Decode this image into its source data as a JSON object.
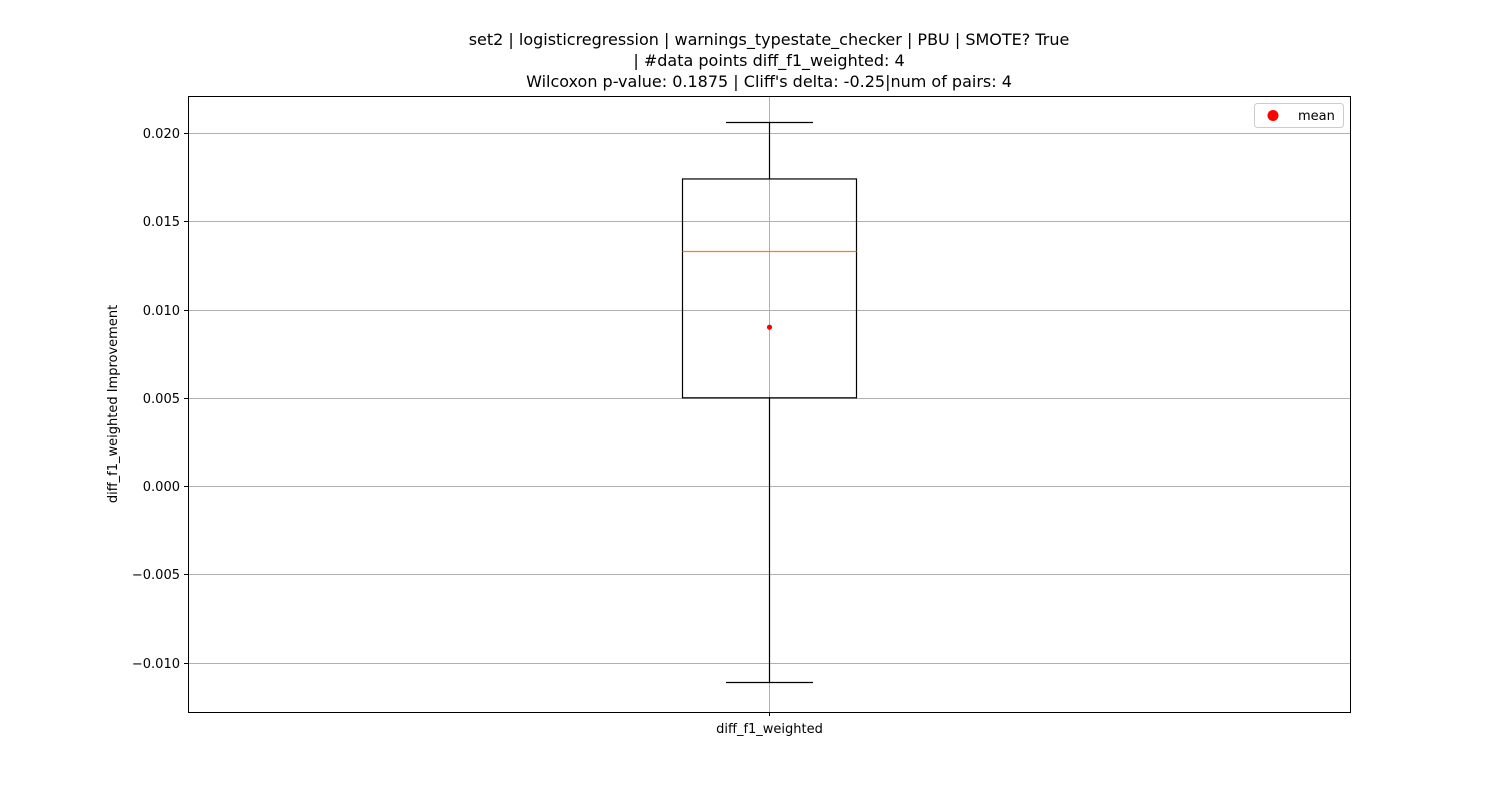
{
  "chart_data": {
    "type": "box",
    "title_lines": [
      "set2 | logisticregression | warnings_typestate_checker | PBU | SMOTE? True",
      "| #data points diff_f1_weighted: 4",
      "Wilcoxon p-value: 0.1875 | Cliff's delta: -0.25|num of pairs: 4"
    ],
    "xlabel": "",
    "ylabel": "diff_f1_weighted Improvement",
    "categories": [
      "diff_f1_weighted"
    ],
    "ylim": [
      -0.0128,
      0.0221
    ],
    "yticks": [
      -0.01,
      -0.005,
      0.0,
      0.005,
      0.01,
      0.015,
      0.02
    ],
    "ytick_labels": [
      "−0.010",
      "−0.005",
      "0.000",
      "0.005",
      "0.010",
      "0.015",
      "0.020"
    ],
    "grid": true,
    "legend": {
      "position": "top-right",
      "entries": [
        "mean"
      ]
    },
    "boxes": [
      {
        "name": "diff_f1_weighted",
        "whisker_low": -0.0111,
        "q1": 0.005,
        "median": 0.0133,
        "q3": 0.0174,
        "whisker_high": 0.0206,
        "mean": 0.009
      }
    ],
    "colors": {
      "box": "#000000",
      "median": "#ff7f0e",
      "mean": "#ff0000",
      "grid": "#b0b0b0"
    }
  }
}
